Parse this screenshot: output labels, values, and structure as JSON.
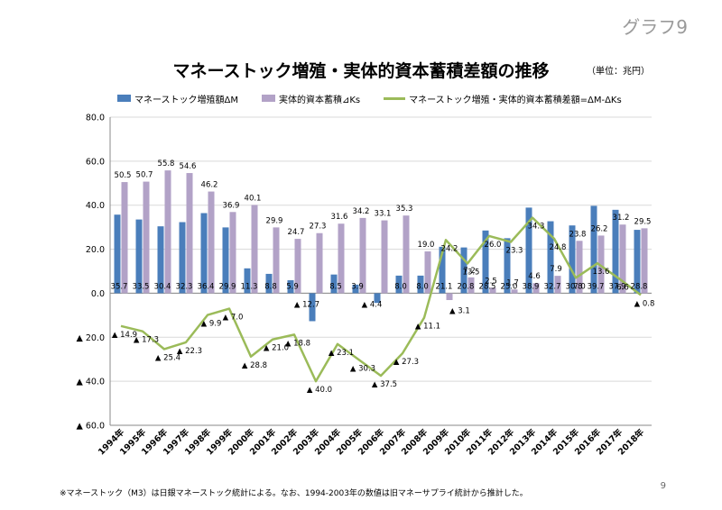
{
  "corner_label": "グラフ9",
  "page_number": "9",
  "footnote": "※マネーストック（M3）は日銀マネーストック統計による。なお、1994-2003年の数値は旧マネーサプライ統計から推計した。",
  "chart_data": {
    "type": "bar+line",
    "title": "マネーストック増殖・実体的資本蓄積差額の推移",
    "unit_note": "（単位：兆円）",
    "xlabel": "",
    "ylabel": "",
    "ylim": [
      -60,
      80
    ],
    "yticks": [
      {
        "value": 80,
        "label": "80.0"
      },
      {
        "value": 60,
        "label": "60.0"
      },
      {
        "value": 40,
        "label": "40.0"
      },
      {
        "value": 20,
        "label": "20.0"
      },
      {
        "value": 0,
        "label": "0.0"
      },
      {
        "value": -20,
        "label": "▲ 20.0"
      },
      {
        "value": -40,
        "label": "▲ 40.0"
      },
      {
        "value": -60,
        "label": "▲ 60.0"
      }
    ],
    "grid": true,
    "legend_position": "top",
    "categories": [
      "1994年",
      "1995年",
      "1996年",
      "1997年",
      "1998年",
      "1999年",
      "2000年",
      "2001年",
      "2002年",
      "2003年",
      "2004年",
      "2005年",
      "2006年",
      "2007年",
      "2008年",
      "2009年",
      "2010年",
      "2011年",
      "2012年",
      "2013年",
      "2014年",
      "2015年",
      "2016年",
      "2017年",
      "2018年"
    ],
    "series": [
      {
        "name": "マネーストック増殖額ΔM",
        "kind": "bar",
        "color": "#4a7ebb",
        "values": [
          35.7,
          33.5,
          30.4,
          32.3,
          36.4,
          29.9,
          11.3,
          8.8,
          5.9,
          -12.7,
          8.5,
          3.9,
          -4.4,
          8.0,
          8.0,
          21.1,
          20.8,
          28.5,
          25.0,
          38.9,
          32.7,
          30.8,
          39.7,
          37.9,
          28.8
        ],
        "labels": [
          "35.7",
          "33.5",
          "30.4",
          "32.3",
          "36.4",
          "29.9",
          "11.3",
          "8.8",
          "5.9",
          "▲ 12.7",
          "8.5",
          "3.9",
          "▲ 4.4",
          "8.0",
          "8.0",
          "21.1",
          "20.8",
          "28.5",
          "25.0",
          "38.9",
          "32.7",
          "30.8",
          "39.7",
          "37.9",
          "28.8"
        ]
      },
      {
        "name": "実体的資本蓄積⊿Ks",
        "kind": "bar",
        "color": "#b2a2c7",
        "values": [
          50.5,
          50.7,
          55.8,
          54.6,
          46.2,
          36.9,
          40.1,
          29.9,
          24.7,
          27.3,
          31.6,
          34.2,
          33.1,
          35.3,
          19.0,
          -3.1,
          7.2,
          2.5,
          1.7,
          4.6,
          7.9,
          23.8,
          26.2,
          31.2,
          29.5
        ],
        "labels": [
          "50.5",
          "50.7",
          "55.8",
          "54.6",
          "46.2",
          "36.9",
          "40.1",
          "29.9",
          "24.7",
          "27.3",
          "31.6",
          "34.2",
          "33.1",
          "35.3",
          "19.0",
          "▲ 3.1",
          "7.2",
          "2.5",
          "1.7",
          "4.6",
          "7.9",
          "23.8",
          "26.2",
          "31.2",
          "29.5"
        ]
      },
      {
        "name": "マネーストック増殖・実体的資本蓄積差額=ΔM-ΔKs",
        "kind": "line",
        "color": "#9bbb59",
        "values": [
          -14.9,
          -17.3,
          -25.4,
          -22.3,
          -9.9,
          -7.0,
          -28.8,
          -21.0,
          -18.8,
          -40.0,
          -23.1,
          -30.3,
          -37.5,
          -27.3,
          -11.1,
          24.2,
          13.5,
          26.0,
          23.3,
          34.3,
          24.8,
          7.0,
          13.6,
          6.6,
          -0.8
        ],
        "labels": [
          "▲ 14.9",
          "▲ 17.3",
          "▲ 25.4",
          "▲ 22.3",
          "▲ 9.9",
          "▲ 7.0",
          "▲ 28.8",
          "▲ 21.0",
          "▲ 18.8",
          "▲ 40.0",
          "▲ 23.1",
          "▲ 30.3",
          "▲ 37.5",
          "▲ 27.3",
          "▲ 11.1",
          "24.2",
          "13.5",
          "26.0",
          "23.3",
          "34.3",
          "24.8",
          "7.0",
          "13.6",
          "6.6",
          "▲ 0.8"
        ]
      }
    ]
  }
}
